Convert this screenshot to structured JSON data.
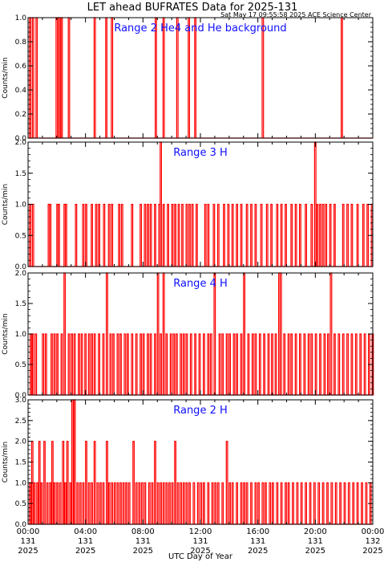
{
  "header": {
    "title": "LET ahead BUFRATES Data for 2025-131",
    "timestamp": "Sat May 17 09:55:58 2025 ACE Science Center"
  },
  "x_axis": {
    "label": "UTC Day of Year",
    "ticks": [
      {
        "time": "00:00",
        "day": "131",
        "year": "2025"
      },
      {
        "time": "04:00",
        "day": "131",
        "year": "2025"
      },
      {
        "time": "08:00",
        "day": "131",
        "year": "2025"
      },
      {
        "time": "12:00",
        "day": "131",
        "year": "2025"
      },
      {
        "time": "16:00",
        "day": "131",
        "year": "2025"
      },
      {
        "time": "20:00",
        "day": "131",
        "year": "2025"
      },
      {
        "time": "00:00",
        "day": "132",
        "year": "2025"
      }
    ]
  },
  "colors": {
    "line": "#ff0000",
    "panel_title": "#1010ff",
    "axis": "#000000"
  },
  "chart_data": [
    {
      "type": "line",
      "title": "Range 2 He4 and He background",
      "ylabel": "Counts/min",
      "xlim": [
        0,
        24
      ],
      "ylim": [
        0,
        1.0
      ],
      "yticks": [
        "0.0",
        "0.2",
        "0.4",
        "0.6",
        "0.8",
        "1.0"
      ],
      "x_unit": "hours UTC",
      "spikes": [
        [
          0.1,
          1
        ],
        [
          0.3,
          1
        ],
        [
          0.55,
          1
        ],
        [
          1.95,
          1
        ],
        [
          2.05,
          1
        ],
        [
          2.15,
          1
        ],
        [
          2.3,
          1
        ],
        [
          2.8,
          1
        ],
        [
          4.6,
          1
        ],
        [
          5.4,
          1
        ],
        [
          5.8,
          1
        ],
        [
          8.85,
          1
        ],
        [
          9.4,
          1
        ],
        [
          10.35,
          1
        ],
        [
          11.15,
          1
        ],
        [
          11.6,
          1
        ],
        [
          16.3,
          1
        ],
        [
          21.8,
          1
        ]
      ]
    },
    {
      "type": "line",
      "title": "Range 3 H",
      "ylabel": "Counts/min",
      "xlim": [
        0,
        24
      ],
      "ylim": [
        0,
        2.0
      ],
      "yticks": [
        "0.0",
        "0.5",
        "1.0",
        "1.5",
        "2.0"
      ],
      "x_unit": "hours UTC",
      "spikes": [
        [
          0.1,
          1
        ],
        [
          0.3,
          1
        ],
        [
          1.4,
          1
        ],
        [
          1.5,
          1
        ],
        [
          2.0,
          1
        ],
        [
          2.1,
          1
        ],
        [
          2.5,
          1
        ],
        [
          2.6,
          1
        ],
        [
          3.3,
          1
        ],
        [
          3.8,
          1
        ],
        [
          4.0,
          1
        ],
        [
          4.4,
          1
        ],
        [
          4.7,
          1
        ],
        [
          4.9,
          1
        ],
        [
          5.25,
          1
        ],
        [
          5.6,
          1
        ],
        [
          5.8,
          1
        ],
        [
          6.3,
          1
        ],
        [
          6.5,
          1
        ],
        [
          7.2,
          1
        ],
        [
          7.8,
          1
        ],
        [
          8.1,
          1
        ],
        [
          8.3,
          1
        ],
        [
          8.5,
          1
        ],
        [
          8.8,
          1
        ],
        [
          9.1,
          1
        ],
        [
          9.2,
          2
        ],
        [
          9.4,
          1
        ],
        [
          9.7,
          1
        ],
        [
          10.0,
          1
        ],
        [
          10.2,
          1
        ],
        [
          10.45,
          1
        ],
        [
          10.7,
          1
        ],
        [
          11.0,
          1
        ],
        [
          11.2,
          1
        ],
        [
          11.4,
          1
        ],
        [
          11.7,
          1
        ],
        [
          12.3,
          1
        ],
        [
          12.5,
          1
        ],
        [
          12.9,
          1
        ],
        [
          13.2,
          1
        ],
        [
          13.6,
          1
        ],
        [
          13.9,
          1
        ],
        [
          14.2,
          1
        ],
        [
          14.5,
          1
        ],
        [
          14.8,
          1
        ],
        [
          15.2,
          1
        ],
        [
          15.5,
          1
        ],
        [
          15.8,
          1
        ],
        [
          16.2,
          1
        ],
        [
          16.6,
          1
        ],
        [
          16.9,
          1
        ],
        [
          17.3,
          1
        ],
        [
          17.6,
          1
        ],
        [
          17.9,
          1
        ],
        [
          18.3,
          1
        ],
        [
          18.6,
          1
        ],
        [
          18.9,
          1
        ],
        [
          19.3,
          1
        ],
        [
          19.7,
          1
        ],
        [
          19.95,
          2
        ],
        [
          20.1,
          1
        ],
        [
          20.3,
          1
        ],
        [
          20.5,
          1
        ],
        [
          20.7,
          1
        ],
        [
          21.0,
          1
        ],
        [
          21.3,
          1
        ],
        [
          21.9,
          1
        ],
        [
          22.2,
          1
        ],
        [
          22.5,
          1
        ],
        [
          22.9,
          1
        ],
        [
          23.3,
          1
        ],
        [
          23.6,
          1
        ],
        [
          23.9,
          1
        ]
      ]
    },
    {
      "type": "line",
      "title": "Range 4 H",
      "ylabel": "Counts/min",
      "xlim": [
        0,
        24
      ],
      "ylim": [
        0,
        2.0
      ],
      "yticks": [
        "0.0",
        "0.5",
        "1.0",
        "1.5",
        "2.0"
      ],
      "x_unit": "hours UTC",
      "spikes": [
        [
          0.15,
          1
        ],
        [
          0.3,
          1
        ],
        [
          0.5,
          1
        ],
        [
          1.0,
          1
        ],
        [
          1.2,
          1
        ],
        [
          1.6,
          1
        ],
        [
          1.8,
          1
        ],
        [
          2.0,
          1
        ],
        [
          2.3,
          1
        ],
        [
          2.5,
          2
        ],
        [
          2.8,
          1
        ],
        [
          3.0,
          1
        ],
        [
          3.2,
          1
        ],
        [
          3.5,
          1
        ],
        [
          3.7,
          1
        ],
        [
          3.95,
          1
        ],
        [
          4.2,
          1
        ],
        [
          4.4,
          1
        ],
        [
          4.6,
          1
        ],
        [
          4.9,
          1
        ],
        [
          5.2,
          1
        ],
        [
          5.45,
          2
        ],
        [
          5.7,
          1
        ],
        [
          5.9,
          1
        ],
        [
          6.2,
          1
        ],
        [
          6.4,
          1
        ],
        [
          6.7,
          1
        ],
        [
          6.9,
          1
        ],
        [
          7.2,
          1
        ],
        [
          7.5,
          1
        ],
        [
          7.8,
          1
        ],
        [
          8.0,
          1
        ],
        [
          8.3,
          1
        ],
        [
          8.5,
          1
        ],
        [
          8.8,
          1
        ],
        [
          9.0,
          2
        ],
        [
          9.2,
          1
        ],
        [
          9.4,
          2
        ],
        [
          9.6,
          1
        ],
        [
          9.9,
          1
        ],
        [
          10.1,
          1
        ],
        [
          10.3,
          1
        ],
        [
          10.6,
          1
        ],
        [
          10.8,
          1
        ],
        [
          11.0,
          1
        ],
        [
          11.3,
          1
        ],
        [
          11.6,
          1
        ],
        [
          11.9,
          1
        ],
        [
          12.2,
          1
        ],
        [
          12.5,
          1
        ],
        [
          12.7,
          1
        ],
        [
          12.95,
          2
        ],
        [
          13.3,
          1
        ],
        [
          13.5,
          1
        ],
        [
          13.8,
          1
        ],
        [
          14.0,
          1
        ],
        [
          14.3,
          1
        ],
        [
          14.5,
          1
        ],
        [
          14.8,
          1
        ],
        [
          15.0,
          2
        ],
        [
          15.3,
          1
        ],
        [
          15.6,
          1
        ],
        [
          15.8,
          1
        ],
        [
          16.1,
          1
        ],
        [
          16.4,
          1
        ],
        [
          16.7,
          1
        ],
        [
          16.95,
          1
        ],
        [
          17.2,
          1
        ],
        [
          17.45,
          2
        ],
        [
          17.55,
          2
        ],
        [
          17.8,
          1
        ],
        [
          18.1,
          1
        ],
        [
          18.3,
          1
        ],
        [
          18.6,
          1
        ],
        [
          18.9,
          1
        ],
        [
          19.2,
          1
        ],
        [
          19.5,
          1
        ],
        [
          19.7,
          1
        ],
        [
          20.0,
          1
        ],
        [
          20.3,
          1
        ],
        [
          20.6,
          1
        ],
        [
          20.85,
          1
        ],
        [
          21.05,
          2
        ],
        [
          21.3,
          1
        ],
        [
          21.6,
          1
        ],
        [
          21.9,
          1
        ],
        [
          22.2,
          1
        ],
        [
          22.5,
          1
        ],
        [
          22.8,
          1
        ],
        [
          23.1,
          1
        ],
        [
          23.4,
          1
        ],
        [
          23.7,
          1
        ],
        [
          23.95,
          1
        ]
      ]
    },
    {
      "type": "line",
      "title": "Range 2 H",
      "ylabel": "Counts/min",
      "xlim": [
        0,
        24
      ],
      "ylim": [
        0,
        3.0
      ],
      "yticks": [
        "0.0",
        "0.5",
        "1.0",
        "1.5",
        "2.0",
        "2.5",
        "3.0"
      ],
      "x_unit": "hours UTC",
      "spikes": [
        [
          0.1,
          1
        ],
        [
          0.25,
          2
        ],
        [
          0.4,
          1
        ],
        [
          0.6,
          1
        ],
        [
          0.75,
          2
        ],
        [
          0.9,
          1
        ],
        [
          1.1,
          2
        ],
        [
          1.3,
          1
        ],
        [
          1.5,
          1
        ],
        [
          1.65,
          2
        ],
        [
          1.8,
          1
        ],
        [
          2.0,
          1
        ],
        [
          2.2,
          1
        ],
        [
          2.4,
          2
        ],
        [
          2.55,
          1
        ],
        [
          2.7,
          2
        ],
        [
          2.9,
          1
        ],
        [
          3.05,
          3
        ],
        [
          3.2,
          3
        ],
        [
          3.4,
          1
        ],
        [
          3.6,
          1
        ],
        [
          3.8,
          1
        ],
        [
          4.0,
          2
        ],
        [
          4.2,
          1
        ],
        [
          4.4,
          1
        ],
        [
          4.6,
          2
        ],
        [
          4.8,
          1
        ],
        [
          5.0,
          1
        ],
        [
          5.2,
          1
        ],
        [
          5.45,
          2
        ],
        [
          5.6,
          1
        ],
        [
          5.8,
          1
        ],
        [
          6.0,
          1
        ],
        [
          6.2,
          1
        ],
        [
          6.4,
          1
        ],
        [
          6.6,
          1
        ],
        [
          6.8,
          1
        ],
        [
          7.0,
          1
        ],
        [
          7.3,
          2
        ],
        [
          7.5,
          1
        ],
        [
          7.7,
          1
        ],
        [
          7.9,
          1
        ],
        [
          8.1,
          1
        ],
        [
          8.4,
          1
        ],
        [
          8.6,
          1
        ],
        [
          8.8,
          2
        ],
        [
          9.0,
          1
        ],
        [
          9.2,
          1
        ],
        [
          9.4,
          1
        ],
        [
          9.6,
          1
        ],
        [
          9.8,
          1
        ],
        [
          10.0,
          1
        ],
        [
          10.2,
          2
        ],
        [
          10.4,
          1
        ],
        [
          10.6,
          1
        ],
        [
          10.8,
          1
        ],
        [
          11.0,
          1
        ],
        [
          11.2,
          1
        ],
        [
          11.5,
          1
        ],
        [
          11.8,
          1
        ],
        [
          12.0,
          1
        ],
        [
          12.2,
          1
        ],
        [
          12.5,
          1
        ],
        [
          12.8,
          1
        ],
        [
          13.0,
          1
        ],
        [
          13.2,
          1
        ],
        [
          13.5,
          1
        ],
        [
          13.8,
          2
        ],
        [
          14.0,
          1
        ],
        [
          14.2,
          1
        ],
        [
          14.5,
          1
        ],
        [
          14.8,
          1
        ],
        [
          15.0,
          1
        ],
        [
          15.2,
          1
        ],
        [
          15.5,
          1
        ],
        [
          15.8,
          1
        ],
        [
          16.0,
          1
        ],
        [
          16.3,
          1
        ],
        [
          16.5,
          1
        ],
        [
          16.8,
          1
        ],
        [
          17.0,
          1
        ],
        [
          17.3,
          1
        ],
        [
          17.6,
          1
        ],
        [
          17.9,
          1
        ],
        [
          18.1,
          1
        ],
        [
          18.4,
          1
        ],
        [
          18.7,
          1
        ],
        [
          19.0,
          1
        ],
        [
          19.3,
          1
        ],
        [
          19.6,
          1
        ],
        [
          19.9,
          1
        ],
        [
          20.2,
          1
        ],
        [
          20.5,
          1
        ],
        [
          20.8,
          1
        ],
        [
          21.1,
          1
        ],
        [
          21.4,
          1
        ],
        [
          21.7,
          1
        ],
        [
          22.0,
          1
        ],
        [
          22.3,
          1
        ],
        [
          22.6,
          1
        ],
        [
          22.9,
          1
        ],
        [
          23.2,
          1
        ],
        [
          23.5,
          1
        ],
        [
          23.8,
          1
        ]
      ]
    }
  ]
}
